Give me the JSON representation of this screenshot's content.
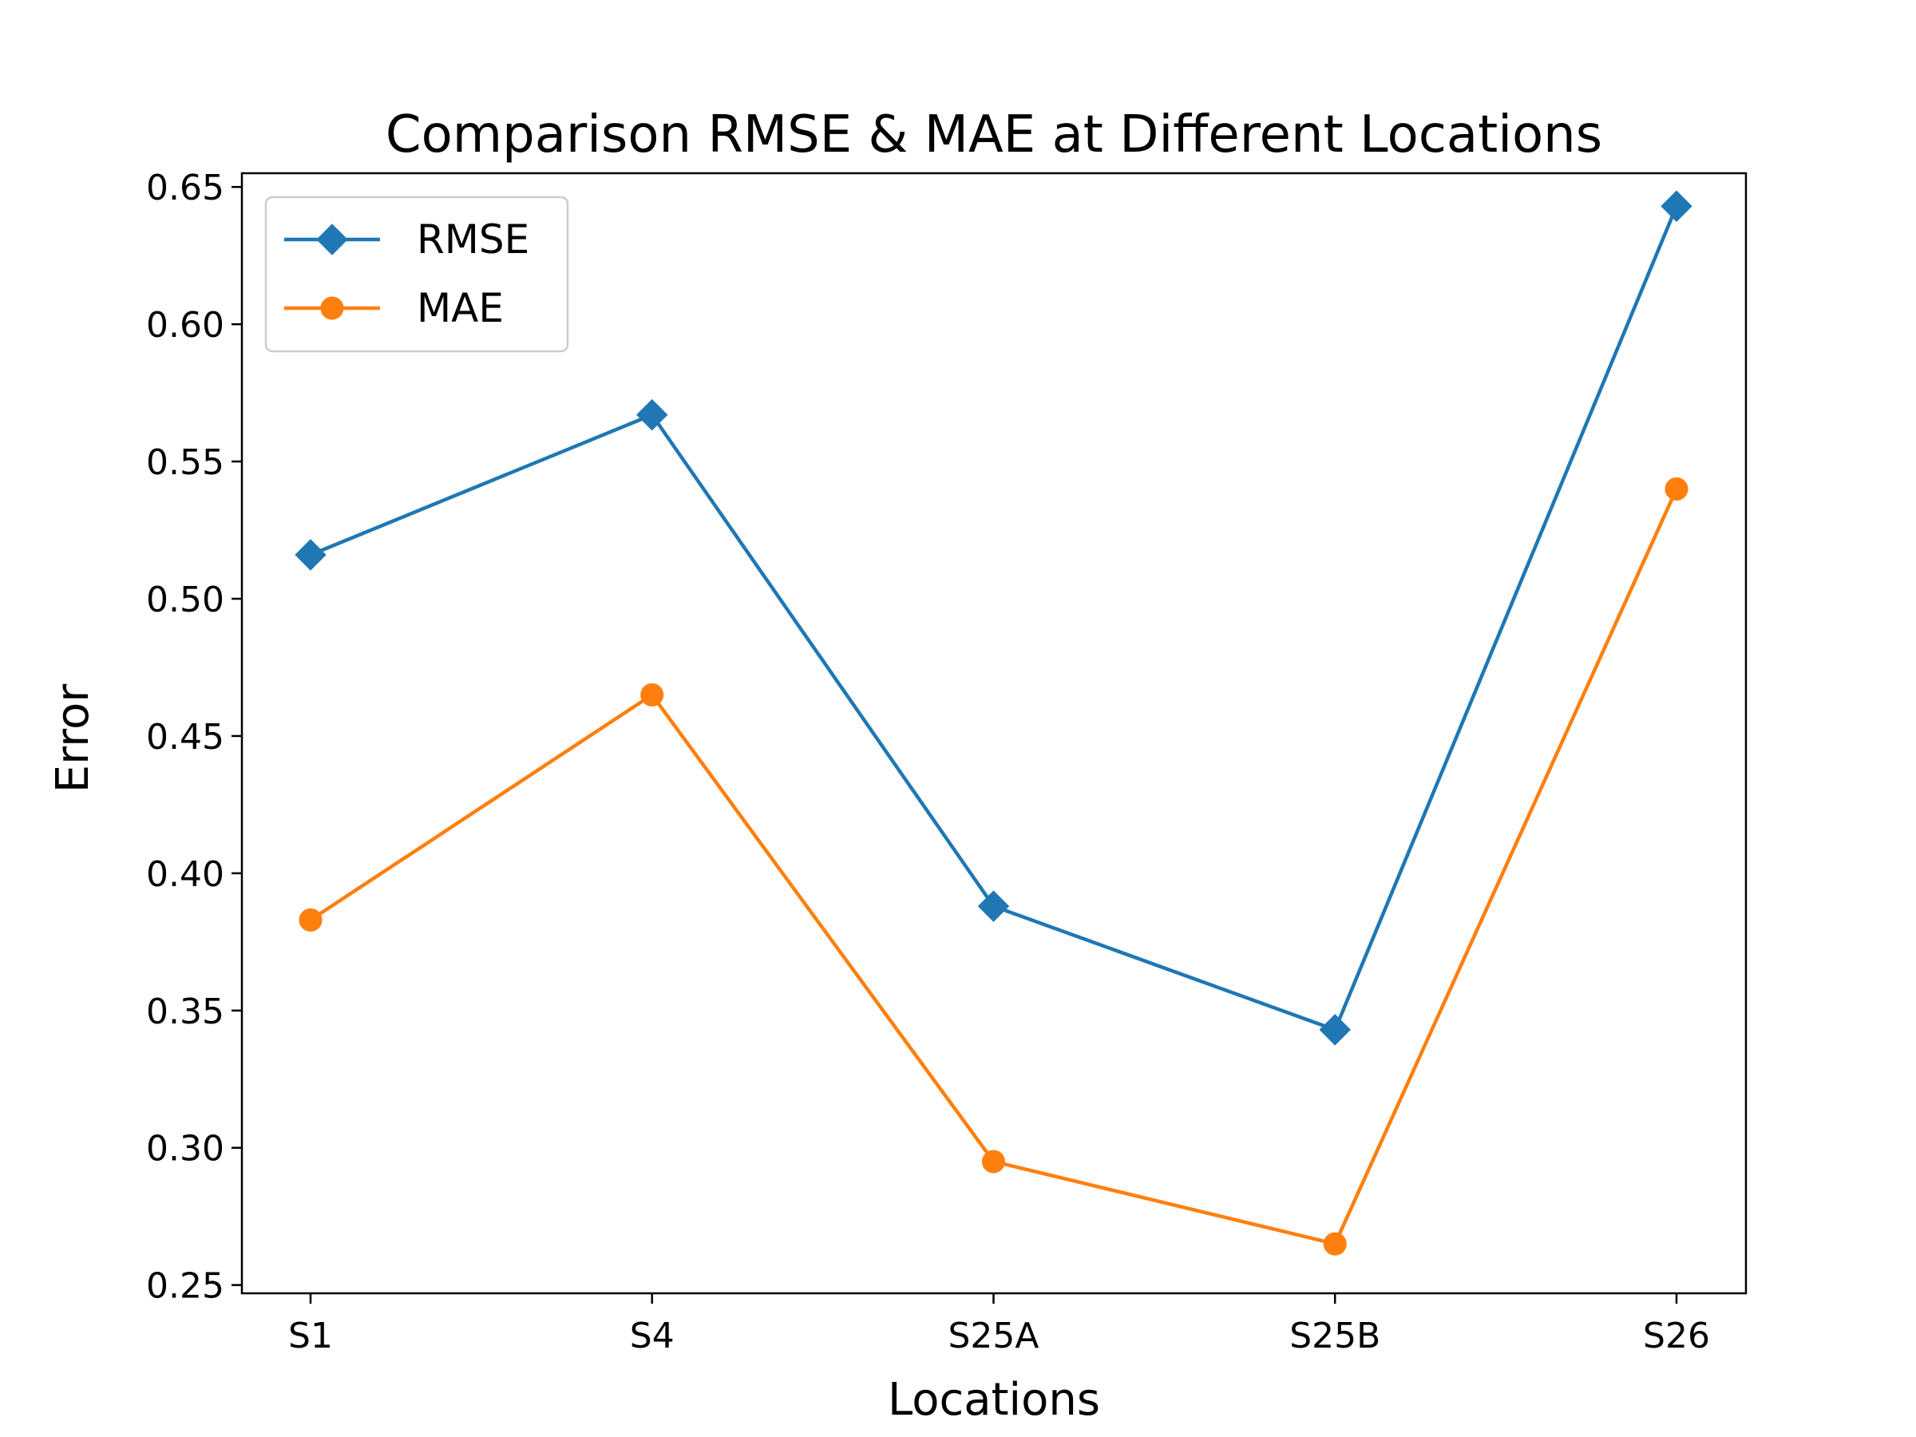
{
  "chart_data": {
    "type": "line",
    "title": "Comparison RMSE & MAE at Different Locations",
    "xlabel": "Locations",
    "ylabel": "Error",
    "categories": [
      "S1",
      "S4",
      "S25A",
      "S25B",
      "S26"
    ],
    "ylim": [
      0.247,
      0.655
    ],
    "yticks": [
      0.25,
      0.3,
      0.35,
      0.4,
      0.45,
      0.5,
      0.55,
      0.6,
      0.65
    ],
    "ytick_labels": [
      "0.25",
      "0.30",
      "0.35",
      "0.40",
      "0.45",
      "0.50",
      "0.55",
      "0.60",
      "0.65"
    ],
    "grid": false,
    "legend_position": "top-left",
    "series": [
      {
        "name": "RMSE",
        "color": "#1f77b4",
        "marker": "diamond",
        "values": [
          0.516,
          0.567,
          0.388,
          0.343,
          0.643
        ]
      },
      {
        "name": "MAE",
        "color": "#ff7f0e",
        "marker": "circle",
        "values": [
          0.383,
          0.465,
          0.295,
          0.265,
          0.54
        ]
      }
    ]
  }
}
